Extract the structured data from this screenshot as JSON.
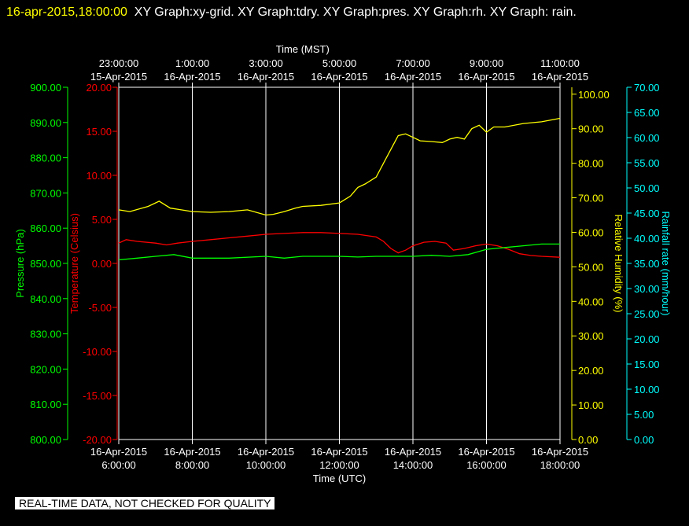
{
  "header": {
    "timestamp": "16-apr-2015,18:00:00",
    "graphs": "XY Graph:xy-grid.  XY Graph:tdry.  XY Graph:pres.  XY Graph:rh.  XY Graph: rain."
  },
  "notice": "REAL-TIME DATA, NOT CHECKED FOR QUALITY",
  "colors": {
    "pressure": "#00ff00",
    "temperature": "#ff0000",
    "humidity": "#ffff00",
    "rainfall": "#00ffff",
    "axis": "#ffffff",
    "grid": "#ffffff"
  },
  "chart_data": {
    "type": "line",
    "x_unit": "hours UTC, 16-Apr-2015",
    "xlim": [
      6,
      18
    ],
    "top_axis": {
      "label": "Time (MST)",
      "ticks": [
        {
          "time": "23:00:00",
          "date": "15-Apr-2015"
        },
        {
          "time": "1:00:00",
          "date": "16-Apr-2015"
        },
        {
          "time": "3:00:00",
          "date": "16-Apr-2015"
        },
        {
          "time": "5:00:00",
          "date": "16-Apr-2015"
        },
        {
          "time": "7:00:00",
          "date": "16-Apr-2015"
        },
        {
          "time": "9:00:00",
          "date": "16-Apr-2015"
        },
        {
          "time": "11:00:00",
          "date": "16-Apr-2015"
        }
      ]
    },
    "bottom_axis": {
      "label": "Time (UTC)",
      "ticks": [
        {
          "date": "16-Apr-2015",
          "time": "6:00:00"
        },
        {
          "date": "16-Apr-2015",
          "time": "8:00:00"
        },
        {
          "date": "16-Apr-2015",
          "time": "10:00:00"
        },
        {
          "date": "16-Apr-2015",
          "time": "12:00:00"
        },
        {
          "date": "16-Apr-2015",
          "time": "14:00:00"
        },
        {
          "date": "16-Apr-2015",
          "time": "16:00:00"
        },
        {
          "date": "16-Apr-2015",
          "time": "18:00:00"
        }
      ]
    },
    "axes": {
      "pressure": {
        "label": "Pressure (hPa)",
        "ylim": [
          800,
          900
        ],
        "ticks": [
          "800.00",
          "810.00",
          "820.00",
          "830.00",
          "840.00",
          "850.00",
          "860.00",
          "870.00",
          "880.00",
          "890.00",
          "900.00"
        ]
      },
      "temperature": {
        "label": "Temperature (Celsius)",
        "ylim": [
          -20,
          20
        ],
        "ticks": [
          "-20.00",
          "-15.00",
          "-10.00",
          "-5.00",
          "0.00",
          "5.00",
          "10.00",
          "15.00",
          "20.00"
        ]
      },
      "humidity": {
        "label": "Relative Humidity (%)",
        "ylim": [
          0,
          102
        ],
        "ticks": [
          "0.00",
          "10.00",
          "20.00",
          "30.00",
          "40.00",
          "50.00",
          "60.00",
          "70.00",
          "80.00",
          "90.00",
          "100.00"
        ]
      },
      "rainfall": {
        "label": "Rainfall rate (mm/hour)",
        "ylim": [
          0,
          70
        ],
        "ticks": [
          "0.00",
          "5.00",
          "10.00",
          "15.00",
          "20.00",
          "25.00",
          "30.00",
          "35.00",
          "40.00",
          "45.00",
          "50.00",
          "55.00",
          "60.00",
          "65.00",
          "70.00"
        ]
      }
    },
    "grid_x": [
      8,
      10,
      12,
      14,
      16
    ],
    "series": [
      {
        "key": "humidity",
        "x": [
          6,
          6.3,
          6.8,
          7.1,
          7.4,
          7.7,
          8,
          8.5,
          9,
          9.5,
          10,
          10.2,
          10.5,
          10.8,
          11,
          11.5,
          12,
          12.3,
          12.5,
          12.7,
          13,
          13.2,
          13.4,
          13.6,
          13.8,
          14,
          14.2,
          14.5,
          14.8,
          15,
          15.2,
          15.4,
          15.6,
          15.8,
          16,
          16.2,
          16.5,
          17,
          17.5,
          18
        ],
        "y": [
          66.5,
          66,
          67.5,
          69,
          67,
          66.5,
          66,
          65.8,
          66,
          66.5,
          65,
          65.2,
          66,
          67,
          67.5,
          67.8,
          68.5,
          70.5,
          73,
          74,
          76,
          80,
          84,
          88,
          88.5,
          87.5,
          86.5,
          86.3,
          86,
          87,
          87.5,
          87,
          90,
          91,
          89,
          90.5,
          90.5,
          91.5,
          92,
          93
        ]
      },
      {
        "key": "temperature",
        "x": [
          6,
          6.2,
          6.5,
          7,
          7.3,
          7.6,
          8,
          8.5,
          9,
          9.5,
          10,
          10.5,
          11,
          11.5,
          12,
          12.5,
          13,
          13.2,
          13.4,
          13.6,
          13.8,
          14,
          14.3,
          14.6,
          14.9,
          15.1,
          15.4,
          15.7,
          16,
          16.3,
          16.6,
          16.9,
          17.2,
          17.5,
          18
        ],
        "y": [
          2.3,
          2.7,
          2.5,
          2.3,
          2.1,
          2.3,
          2.5,
          2.7,
          2.9,
          3.1,
          3.3,
          3.4,
          3.5,
          3.5,
          3.4,
          3.3,
          3.0,
          2.5,
          1.7,
          1.2,
          1.5,
          2.0,
          2.4,
          2.5,
          2.3,
          1.5,
          1.7,
          2.0,
          2.2,
          2.0,
          1.6,
          1.1,
          0.9,
          0.8,
          0.7
        ]
      },
      {
        "key": "pressure",
        "x": [
          6,
          6.5,
          7,
          7.5,
          8,
          8.5,
          9,
          10,
          10.5,
          11,
          12,
          12.5,
          13,
          13.5,
          14,
          14.5,
          15,
          15.5,
          16,
          16.5,
          17,
          17.5,
          18
        ],
        "y": [
          851,
          851.5,
          852,
          852.5,
          851.5,
          851.5,
          851.5,
          852,
          851.5,
          852,
          852,
          851.8,
          852,
          852,
          852,
          852.3,
          852,
          852.5,
          854,
          854.5,
          855,
          855.5,
          855.5
        ]
      }
    ]
  }
}
